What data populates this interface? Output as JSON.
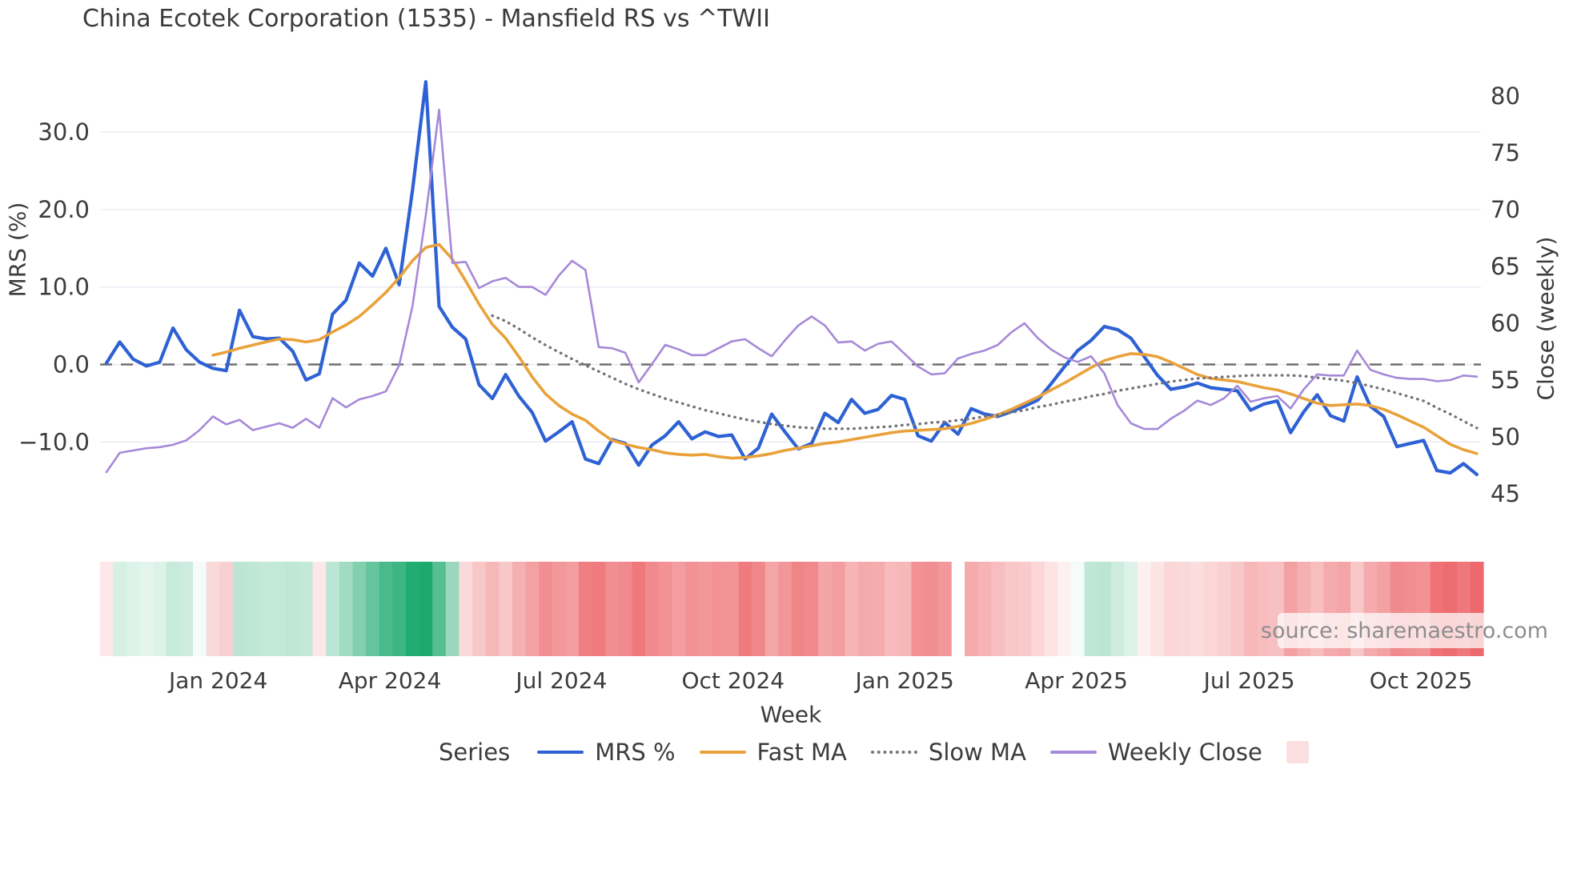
{
  "title": "China Ecotek Corporation (1535) - Mansfield RS vs ^TWII",
  "source_note": "source: sharemaestro.com",
  "left_axis": {
    "label": "MRS (%)",
    "ticks": [
      {
        "v": 30,
        "label": "30.0"
      },
      {
        "v": 20,
        "label": "20.0"
      },
      {
        "v": 10,
        "label": "10.0"
      },
      {
        "v": 0,
        "label": "0.0"
      },
      {
        "v": -10,
        "label": "−10.0"
      }
    ]
  },
  "right_axis": {
    "label": "Close (weekly)",
    "ticks": [
      {
        "v": 80,
        "label": "80"
      },
      {
        "v": 75,
        "label": "75"
      },
      {
        "v": 70,
        "label": "70"
      },
      {
        "v": 65,
        "label": "65"
      },
      {
        "v": 60,
        "label": "60"
      },
      {
        "v": 55,
        "label": "55"
      },
      {
        "v": 50,
        "label": "50"
      },
      {
        "v": 45,
        "label": "45"
      }
    ]
  },
  "x_axis": {
    "label": "Week",
    "ticks": [
      {
        "week": 8.4,
        "label": "Jan 2024"
      },
      {
        "week": 21.3,
        "label": "Apr 2024"
      },
      {
        "week": 34.2,
        "label": "Jul 2024"
      },
      {
        "week": 47.1,
        "label": "Oct 2024"
      },
      {
        "week": 60.0,
        "label": "Jan 2025"
      },
      {
        "week": 72.9,
        "label": "Apr 2025"
      },
      {
        "week": 85.9,
        "label": "Jul 2025"
      },
      {
        "week": 98.8,
        "label": "Oct 2025"
      }
    ]
  },
  "legend": {
    "title": "Series",
    "items": [
      {
        "label": "MRS %",
        "color": "#2e62d4",
        "style": "line"
      },
      {
        "label": "Fast MA",
        "color": "#e9a23b",
        "style": "line"
      },
      {
        "label": "Slow MA",
        "color": "#73737b",
        "style": "dotted"
      },
      {
        "label": "Weekly Close",
        "color": "#a689d8",
        "style": "line"
      }
    ],
    "heat_swatch_color": "#fbdfe1"
  },
  "colors": {
    "grid": "#e9e9f3",
    "zero_dash": "#6f6f6f",
    "tick_text": "#3c3c3c",
    "heat_green": "#1ca96e",
    "heat_red": "#e84348"
  },
  "chart_data": {
    "type": "line",
    "x_unit": "week index (weekly data, ~Nov 2023 to Nov 2025)",
    "n_points": 104,
    "left_ylim": [
      -20,
      36.7
    ],
    "right_ylim": [
      43.8,
      81.2
    ],
    "grid": true,
    "zero_line_left_axis": 0,
    "series": [
      {
        "name": "MRS %",
        "axis": "left",
        "values": [
          0.2,
          2.9,
          0.7,
          -0.2,
          0.3,
          4.7,
          1.9,
          0.3,
          -0.5,
          -0.8,
          7.0,
          3.6,
          3.3,
          3.4,
          1.7,
          -2.0,
          -1.2,
          6.5,
          8.3,
          13.1,
          11.4,
          15.0,
          10.3,
          22.5,
          36.5,
          7.5,
          4.8,
          3.3,
          -2.6,
          -4.4,
          -1.3,
          -4.1,
          -6.2,
          -9.9,
          -8.7,
          -7.4,
          -12.2,
          -12.8,
          -9.7,
          -10.2,
          -13.0,
          -10.4,
          -9.2,
          -7.4,
          -9.6,
          -8.7,
          -9.3,
          -9.1,
          -12.2,
          -10.8,
          -6.4,
          -8.7,
          -10.9,
          -10.2,
          -6.3,
          -7.5,
          -4.5,
          -6.3,
          -5.8,
          -4.0,
          -4.5,
          -9.2,
          -9.9,
          -7.5,
          -9.0,
          -5.7,
          -6.4,
          -6.7,
          -6.1,
          -5.4,
          -4.6,
          -2.5,
          -0.3,
          1.8,
          3.1,
          4.9,
          4.5,
          3.4,
          1.0,
          -1.4,
          -3.2,
          -2.9,
          -2.4,
          -3.0,
          -3.2,
          -3.4,
          -5.9,
          -5.1,
          -4.7,
          -8.8,
          -6.1,
          -3.9,
          -6.6,
          -7.3,
          -1.6,
          -5.4,
          -6.7,
          -10.6,
          -10.2,
          -9.8,
          -13.7,
          -14.0,
          -12.8,
          -14.2
        ]
      },
      {
        "name": "Fast MA",
        "axis": "left",
        "values": [
          null,
          null,
          null,
          null,
          null,
          null,
          null,
          null,
          1.2,
          1.6,
          2.1,
          2.5,
          2.9,
          3.3,
          3.2,
          2.9,
          3.2,
          4.2,
          5.1,
          6.2,
          7.7,
          9.3,
          11.2,
          13.4,
          15.1,
          15.5,
          13.6,
          10.8,
          7.8,
          5.2,
          3.4,
          1.0,
          -1.6,
          -3.8,
          -5.3,
          -6.4,
          -7.2,
          -8.6,
          -9.8,
          -10.3,
          -10.7,
          -11.0,
          -11.4,
          -11.6,
          -11.7,
          -11.6,
          -11.9,
          -12.1,
          -12.0,
          -11.8,
          -11.5,
          -11.1,
          -10.8,
          -10.5,
          -10.2,
          -10.0,
          -9.7,
          -9.4,
          -9.1,
          -8.8,
          -8.6,
          -8.5,
          -8.4,
          -8.3,
          -8.0,
          -7.6,
          -7.1,
          -6.5,
          -5.8,
          -5.0,
          -4.2,
          -3.3,
          -2.4,
          -1.4,
          -0.4,
          0.5,
          1.0,
          1.4,
          1.3,
          1.0,
          0.3,
          -0.5,
          -1.3,
          -1.8,
          -2.0,
          -2.2,
          -2.6,
          -3.0,
          -3.3,
          -3.8,
          -4.4,
          -5.0,
          -5.3,
          -5.2,
          -5.1,
          -5.3,
          -5.8,
          -6.5,
          -7.3,
          -8.1,
          -9.2,
          -10.3,
          -11.0,
          -11.5
        ]
      },
      {
        "name": "Slow MA",
        "axis": "left",
        "values": [
          null,
          null,
          null,
          null,
          null,
          null,
          null,
          null,
          null,
          null,
          null,
          null,
          null,
          null,
          null,
          null,
          null,
          null,
          null,
          null,
          null,
          null,
          null,
          null,
          null,
          null,
          null,
          null,
          null,
          6.3,
          5.6,
          4.6,
          3.5,
          2.5,
          1.6,
          0.7,
          -0.1,
          -0.9,
          -1.7,
          -2.5,
          -3.2,
          -3.8,
          -4.4,
          -4.9,
          -5.4,
          -5.9,
          -6.3,
          -6.7,
          -7.1,
          -7.4,
          -7.7,
          -7.9,
          -8.1,
          -8.2,
          -8.3,
          -8.3,
          -8.3,
          -8.2,
          -8.1,
          -8.0,
          -7.8,
          -7.7,
          -7.5,
          -7.4,
          -7.2,
          -7.0,
          -6.7,
          -6.5,
          -6.2,
          -5.9,
          -5.5,
          -5.2,
          -4.8,
          -4.5,
          -4.1,
          -3.8,
          -3.4,
          -3.1,
          -2.8,
          -2.5,
          -2.2,
          -2.0,
          -1.8,
          -1.7,
          -1.6,
          -1.5,
          -1.4,
          -1.4,
          -1.4,
          -1.4,
          -1.5,
          -1.7,
          -1.9,
          -2.1,
          -2.4,
          -2.8,
          -3.2,
          -3.7,
          -4.2,
          -4.7,
          -5.6,
          -6.4,
          -7.3,
          -8.2
        ]
      },
      {
        "name": "Weekly Close",
        "axis": "right",
        "values": [
          46.9,
          48.6,
          48.8,
          49.0,
          49.1,
          49.3,
          49.7,
          50.6,
          51.8,
          51.1,
          51.5,
          50.6,
          50.9,
          51.2,
          50.8,
          51.6,
          50.8,
          53.4,
          52.6,
          53.3,
          53.6,
          54.0,
          56.3,
          61.5,
          69.5,
          78.8,
          65.3,
          65.4,
          63.1,
          63.7,
          64.0,
          63.2,
          63.2,
          62.5,
          64.2,
          65.5,
          64.7,
          57.9,
          57.8,
          57.4,
          54.8,
          56.4,
          58.1,
          57.7,
          57.2,
          57.2,
          57.8,
          58.4,
          58.6,
          57.8,
          57.1,
          58.5,
          59.8,
          60.6,
          59.8,
          58.3,
          58.4,
          57.6,
          58.2,
          58.4,
          57.3,
          56.2,
          55.5,
          55.6,
          56.9,
          57.3,
          57.6,
          58.1,
          59.2,
          60.0,
          58.7,
          57.7,
          57.0,
          56.6,
          57.1,
          55.6,
          52.8,
          51.2,
          50.7,
          50.7,
          51.6,
          52.3,
          53.2,
          52.8,
          53.4,
          54.5,
          53.1,
          53.4,
          53.6,
          52.5,
          54.2,
          55.5,
          55.4,
          55.4,
          57.6,
          55.9,
          55.5,
          55.2,
          55.1,
          55.1,
          54.9,
          55.0,
          55.4,
          55.3
        ]
      }
    ],
    "heat_strip": {
      "description": "weekly heat band below chart; green=positive, red=negative, intensity 0..1; null = gap week",
      "values": [
        -0.12,
        0.18,
        0.15,
        0.12,
        0.15,
        0.25,
        0.22,
        0.05,
        -0.2,
        -0.25,
        0.3,
        0.28,
        0.26,
        0.27,
        0.28,
        0.26,
        -0.12,
        0.3,
        0.42,
        0.55,
        0.68,
        0.8,
        0.85,
        0.97,
        1.0,
        0.75,
        0.45,
        -0.2,
        -0.3,
        -0.38,
        -0.3,
        -0.42,
        -0.5,
        -0.6,
        -0.55,
        -0.52,
        -0.68,
        -0.7,
        -0.6,
        -0.62,
        -0.72,
        -0.62,
        -0.58,
        -0.52,
        -0.58,
        -0.55,
        -0.58,
        -0.57,
        -0.7,
        -0.64,
        -0.48,
        -0.56,
        -0.65,
        -0.62,
        -0.48,
        -0.52,
        -0.4,
        -0.46,
        -0.44,
        -0.36,
        -0.38,
        -0.58,
        -0.6,
        -0.55,
        null,
        -0.45,
        -0.4,
        -0.35,
        -0.3,
        -0.28,
        -0.22,
        -0.15,
        -0.08,
        0.05,
        0.28,
        0.3,
        0.22,
        0.15,
        -0.08,
        -0.15,
        -0.22,
        -0.2,
        -0.18,
        -0.22,
        -0.25,
        -0.3,
        -0.38,
        -0.35,
        -0.33,
        -0.5,
        -0.42,
        -0.35,
        -0.45,
        -0.48,
        -0.3,
        -0.45,
        -0.5,
        -0.62,
        -0.6,
        -0.58,
        -0.75,
        -0.78,
        -0.72,
        -0.8
      ]
    }
  }
}
